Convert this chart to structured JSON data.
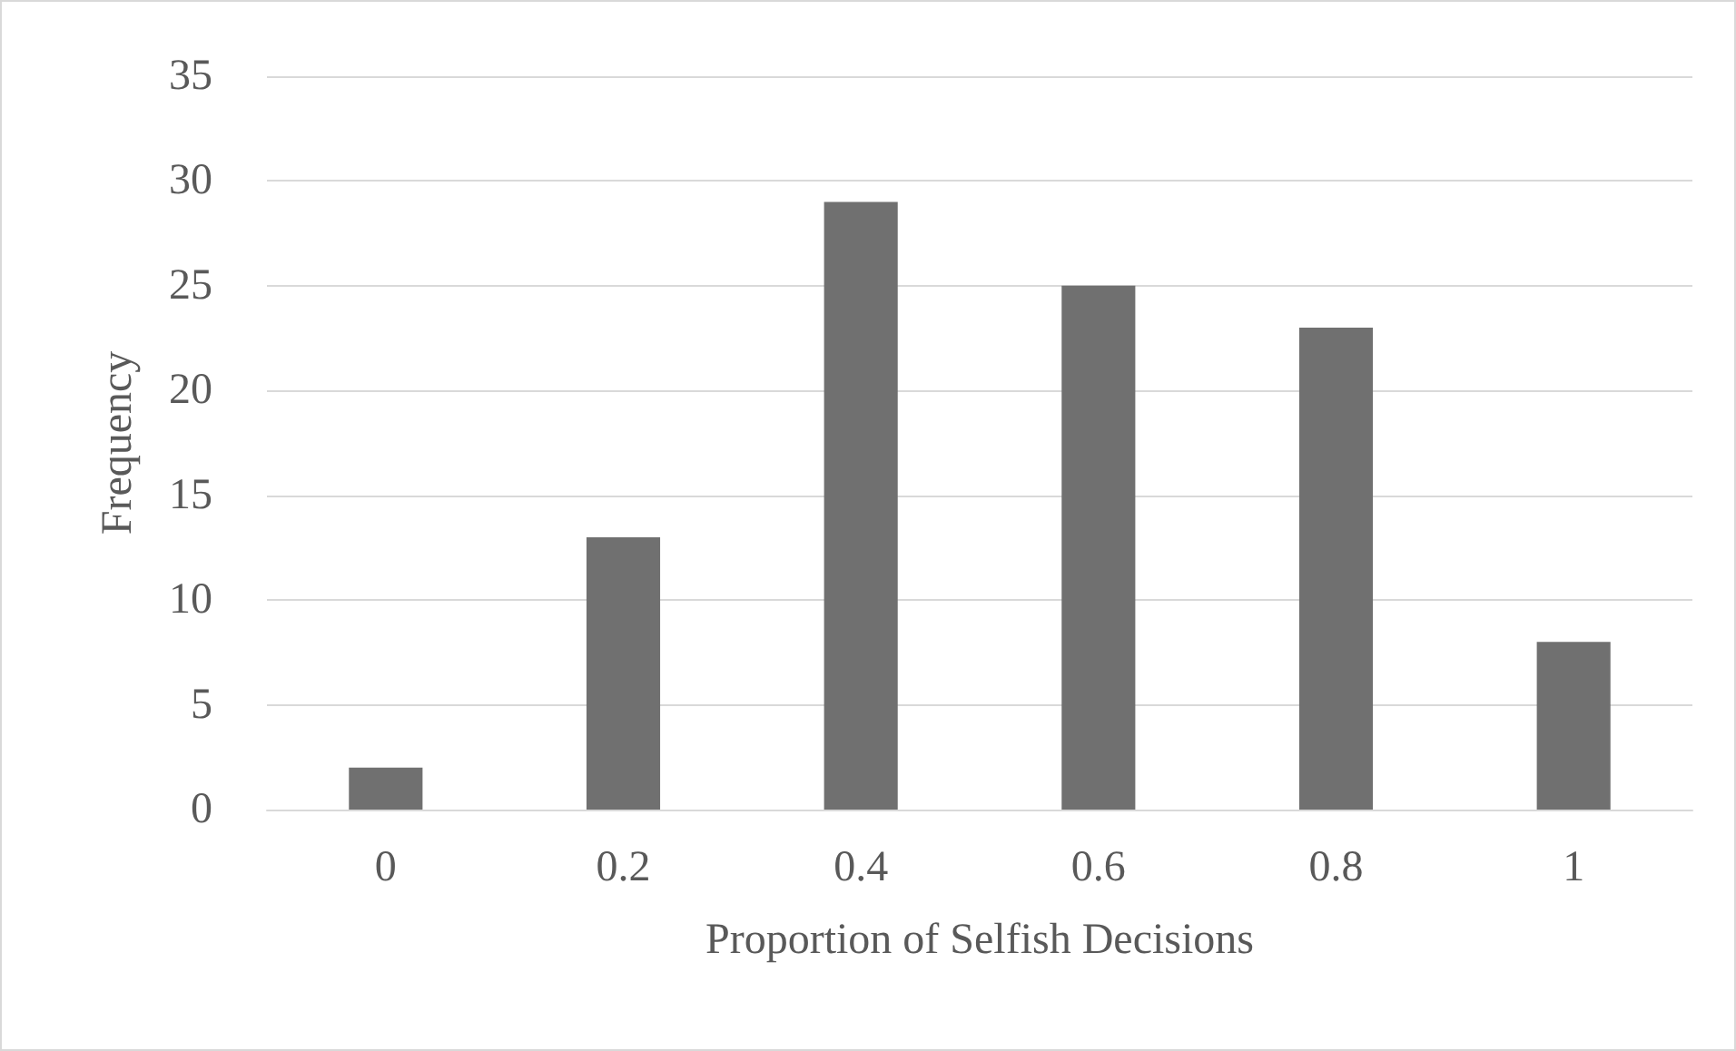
{
  "chart_data": {
    "type": "bar",
    "xlabel": "Proportion of Selfish Decisions",
    "ylabel": "Frequency",
    "categories": [
      "0",
      "0.2",
      "0.4",
      "0.6",
      "0.8",
      "1"
    ],
    "values": [
      2,
      13,
      29,
      25,
      23,
      8
    ],
    "color": "#707070",
    "ylim": [
      0,
      35
    ],
    "yticks": [
      0,
      5,
      10,
      15,
      20,
      25,
      30,
      35
    ],
    "grid": "y"
  }
}
